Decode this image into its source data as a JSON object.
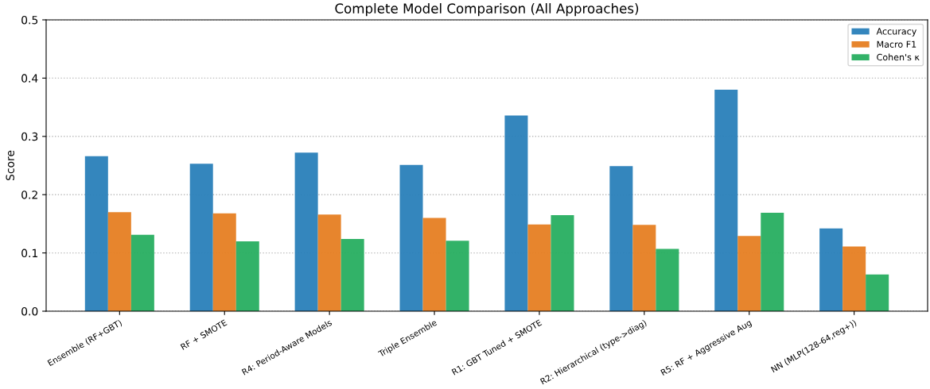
{
  "chart_data": {
    "type": "bar",
    "title": "Complete Model Comparison (All Approaches)",
    "ylabel": "Score",
    "categories": [
      "Ensemble (RF+GBT)",
      "RF + SMOTE",
      "R4: Period-Aware Models",
      "Triple Ensemble",
      "R1: GBT Tuned + SMOTE",
      "R2: Hierarchical (type->diag)",
      "R5: RF + Aggressive Aug",
      "NN (MLP(128-64,reg+))"
    ],
    "series": [
      {
        "name": "Accuracy",
        "color": "#2980b9",
        "values": [
          0.266,
          0.253,
          0.272,
          0.251,
          0.336,
          0.249,
          0.38,
          0.142
        ]
      },
      {
        "name": "Macro F1",
        "color": "#e67e22",
        "values": [
          0.17,
          0.168,
          0.166,
          0.16,
          0.149,
          0.148,
          0.129,
          0.111
        ]
      },
      {
        "name": "Cohen's κ",
        "color": "#27ae60",
        "values": [
          0.131,
          0.12,
          0.124,
          0.121,
          0.165,
          0.107,
          0.169,
          0.063
        ]
      }
    ],
    "ylim": [
      0,
      0.5
    ],
    "yticks": [
      {
        "value": 0,
        "label": "0.0"
      },
      0.1,
      0.2,
      0.3,
      0.4,
      0.5
    ],
    "grid": "y",
    "legend": "top right"
  }
}
